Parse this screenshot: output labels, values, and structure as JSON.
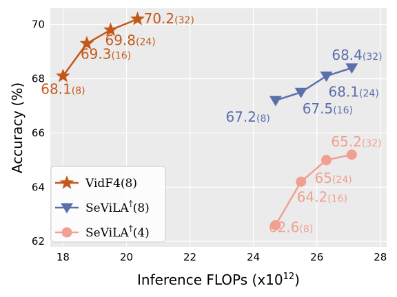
{
  "chart_data": {
    "type": "line",
    "title": "",
    "xlabel": "Inference FLOPs (x10",
    "xlabel_sup": "12",
    "xlabel_close": ")",
    "ylabel": "Accuracy (%)",
    "xlim": [
      17.6,
      28.2
    ],
    "ylim": [
      61.8,
      70.6
    ],
    "xticks": [
      18,
      20,
      22,
      24,
      26,
      28
    ],
    "yticks": [
      62,
      64,
      66,
      68,
      70
    ],
    "grid": true,
    "background": "#ebebeb",
    "legend_position": "lower-left",
    "series": [
      {
        "name": "VidF4(8)",
        "marker": "star",
        "color": "#c4581a",
        "label_color": "#c4581a",
        "x": [
          18.0,
          18.75,
          19.5,
          20.35
        ],
        "y": [
          68.1,
          69.3,
          69.8,
          70.2
        ],
        "labels": [
          {
            "main": "68.1",
            "sub": "(8)"
          },
          {
            "main": "69.3",
            "sub": "(16)"
          },
          {
            "main": "69.8",
            "sub": "(24)"
          },
          {
            "main": "70.2",
            "sub": "(32)"
          }
        ]
      },
      {
        "name": "SeViLA",
        "name_sup": "†",
        "name_suffix": "(8)",
        "marker": "triangle-down",
        "color": "#5b6fab",
        "label_color": "#5b6fab",
        "x": [
          24.7,
          25.5,
          26.3,
          27.1
        ],
        "y": [
          67.2,
          67.5,
          68.1,
          68.4
        ],
        "labels": [
          {
            "main": "67.2",
            "sub": "(8)"
          },
          {
            "main": "67.5",
            "sub": "(16)"
          },
          {
            "main": "68.1",
            "sub": "(24)"
          },
          {
            "main": "68.4",
            "sub": "(32)"
          }
        ]
      },
      {
        "name": "SeViLA",
        "name_sup": "†",
        "name_suffix": "(4)",
        "marker": "circle",
        "color": "#f0a090",
        "label_color": "#f0a090",
        "x": [
          24.7,
          25.5,
          26.3,
          27.1
        ],
        "y": [
          62.6,
          64.2,
          65.0,
          65.2
        ],
        "labels": [
          {
            "main": "62.6",
            "sub": "(8)"
          },
          {
            "main": "64.2",
            "sub": "(16)"
          },
          {
            "main": "65",
            "sub": "(24)"
          },
          {
            "main": "65.2",
            "sub": "(32)"
          }
        ]
      }
    ]
  }
}
